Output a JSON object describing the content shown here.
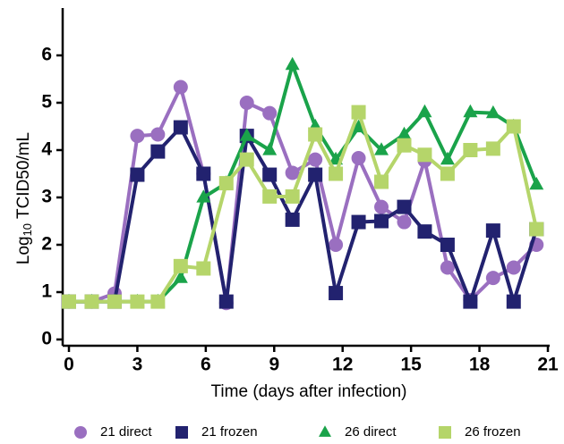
{
  "chart_data": {
    "type": "line",
    "x_label": "Time (days after infection)",
    "y_label": {
      "main": "Log",
      "sub": "10",
      "rest": " TCID50/mL"
    },
    "xlim": [
      0,
      21
    ],
    "xticks": [
      0,
      3,
      6,
      9,
      12,
      15,
      18,
      21
    ],
    "ylim": [
      0,
      7
    ],
    "yticks": [
      0,
      1,
      2,
      3,
      4,
      5,
      6
    ],
    "x": [
      0,
      1,
      2,
      3,
      3.9,
      4.9,
      5.9,
      6.9,
      7.8,
      8.8,
      9.8,
      10.8,
      11.7,
      12.7,
      13.7,
      14.7,
      15.6,
      16.6,
      17.6,
      18.6,
      19.5,
      20.5
    ],
    "legend": "bottom",
    "series": [
      {
        "name": "21 direct",
        "color": "#9a6fc0",
        "marker": "circle",
        "values": [
          0.8,
          0.8,
          0.97,
          4.3,
          4.33,
          5.33,
          3.5,
          0.77,
          5.0,
          4.78,
          3.52,
          3.8,
          2.0,
          3.83,
          2.8,
          2.48,
          3.78,
          1.52,
          0.83,
          1.3,
          1.52,
          2.0
        ]
      },
      {
        "name": "21 frozen",
        "color": "#22226f",
        "marker": "square",
        "values": [
          0.8,
          0.8,
          0.8,
          3.48,
          3.97,
          4.48,
          3.5,
          0.8,
          4.3,
          3.48,
          2.53,
          3.48,
          0.98,
          2.48,
          2.5,
          2.8,
          2.28,
          2.0,
          0.8,
          2.3,
          0.8,
          2.33
        ]
      },
      {
        "name": "26 direct",
        "color": "#1aa34a",
        "marker": "triangle",
        "values": [
          0.8,
          0.8,
          0.8,
          0.8,
          0.8,
          1.3,
          3.0,
          3.3,
          4.3,
          4.0,
          5.8,
          4.5,
          3.8,
          4.48,
          4.0,
          4.33,
          4.8,
          3.8,
          4.8,
          4.78,
          4.5,
          3.27
        ]
      },
      {
        "name": "26 frozen",
        "color": "#b5d56a",
        "marker": "square",
        "values": [
          0.8,
          0.8,
          0.8,
          0.8,
          0.8,
          1.55,
          1.5,
          3.3,
          3.8,
          3.02,
          3.02,
          4.33,
          3.5,
          4.8,
          3.33,
          4.1,
          3.9,
          3.5,
          4.0,
          4.03,
          4.5,
          2.33
        ]
      }
    ]
  }
}
